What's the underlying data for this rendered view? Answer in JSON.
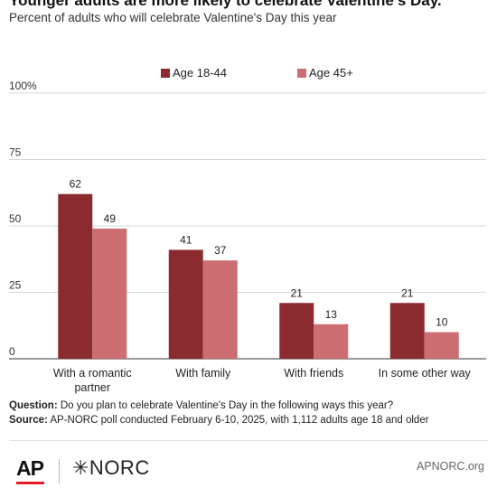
{
  "title": "Younger adults are more likely to celebrate Valentine's Day.",
  "subtitle": "Percent of adults who will celebrate Valentine's Day this year",
  "chart_data": {
    "type": "bar",
    "categories": [
      [
        "With a romantic",
        "partner"
      ],
      [
        "With family"
      ],
      [
        "With friends"
      ],
      [
        "In some other way"
      ]
    ],
    "series": [
      {
        "name": "Age 18-44",
        "values": [
          62,
          41,
          21,
          21
        ],
        "color": "#8b2b30"
      },
      {
        "name": "Age 45+",
        "values": [
          49,
          37,
          13,
          10
        ],
        "color": "#cc6d72"
      }
    ],
    "yticks": [
      "0",
      "25",
      "50",
      "75",
      "100%"
    ],
    "ylim": [
      0,
      100
    ],
    "grid": true,
    "legend": "top-center"
  },
  "notes": {
    "question_label": "Question:",
    "question_text": " Do you plan to celebrate Valentine's Day in the following ways this year?",
    "source_label": "Source:",
    "source_text": " AP-NORC poll conducted February 6-10, 2025, with 1,112 adults age 18 and older"
  },
  "footer": {
    "ap_logo": "AP",
    "norc_logo": "✳NORC",
    "link": "APNORC.org"
  }
}
